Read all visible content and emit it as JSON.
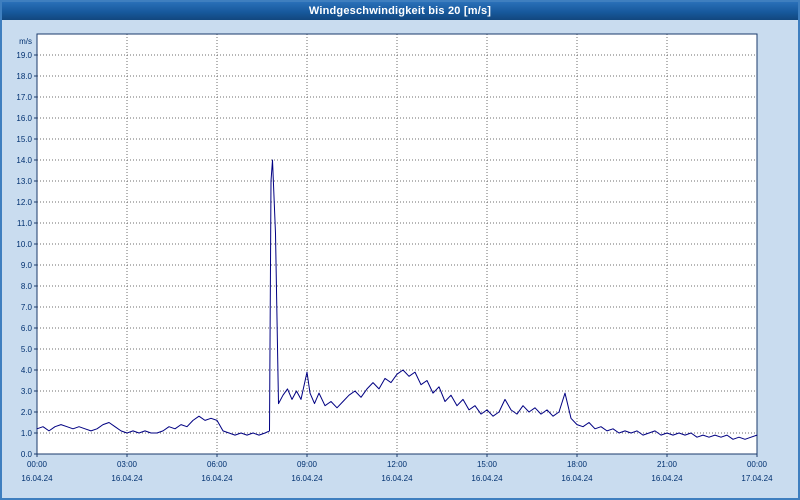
{
  "window": {
    "title": "Windgeschwindigkeit bis 20 [m/s]"
  },
  "colors": {
    "titlebar_bg": "#17599d",
    "titlebar_text": "#ffffff",
    "page_bg": "#c9dcef",
    "plot_bg": "#ffffff",
    "plot_border": "#1a3a6b",
    "grid": "#6e6e6e",
    "axis_text": "#003070",
    "series_line": "#000082",
    "outer_border": "#3f7fbf"
  },
  "chart_data": {
    "type": "line",
    "title": "Windgeschwindigkeit bis 20 [m/s]",
    "ylabel": "m/s",
    "ylim": [
      0,
      20
    ],
    "ytick_step": 1.0,
    "ytick_labels": [
      "0.0",
      "1.0",
      "2.0",
      "3.0",
      "4.0",
      "5.0",
      "6.0",
      "7.0",
      "8.0",
      "9.0",
      "10.0",
      "11.0",
      "12.0",
      "13.0",
      "14.0",
      "15.0",
      "16.0",
      "17.0",
      "18.0",
      "19.0"
    ],
    "x_hours_range": [
      0,
      24
    ],
    "xtick_interval_hours": 3,
    "grid": "dotted",
    "legend": "none",
    "xticks": [
      {
        "time": "00:00",
        "date": "16.04.24"
      },
      {
        "time": "03:00",
        "date": "16.04.24"
      },
      {
        "time": "06:00",
        "date": "16.04.24"
      },
      {
        "time": "09:00",
        "date": "16.04.24"
      },
      {
        "time": "12:00",
        "date": "16.04.24"
      },
      {
        "time": "15:00",
        "date": "16.04.24"
      },
      {
        "time": "18:00",
        "date": "16.04.24"
      },
      {
        "time": "21:00",
        "date": "16.04.24"
      },
      {
        "time": "00:00",
        "date": "17.04.24"
      }
    ],
    "series": [
      {
        "name": "Windgeschwindigkeit",
        "color": "#000082",
        "points": [
          [
            0,
            1.2
          ],
          [
            0.2,
            1.3
          ],
          [
            0.4,
            1.1
          ],
          [
            0.6,
            1.3
          ],
          [
            0.8,
            1.4
          ],
          [
            1,
            1.3
          ],
          [
            1.2,
            1.2
          ],
          [
            1.4,
            1.3
          ],
          [
            1.6,
            1.2
          ],
          [
            1.8,
            1.1
          ],
          [
            2,
            1.2
          ],
          [
            2.2,
            1.4
          ],
          [
            2.4,
            1.5
          ],
          [
            2.6,
            1.3
          ],
          [
            2.8,
            1.1
          ],
          [
            3,
            1.0
          ],
          [
            3.2,
            1.1
          ],
          [
            3.4,
            1.0
          ],
          [
            3.6,
            1.1
          ],
          [
            3.8,
            1.0
          ],
          [
            4,
            1.0
          ],
          [
            4.2,
            1.1
          ],
          [
            4.4,
            1.3
          ],
          [
            4.6,
            1.2
          ],
          [
            4.8,
            1.4
          ],
          [
            5,
            1.3
          ],
          [
            5.2,
            1.6
          ],
          [
            5.4,
            1.8
          ],
          [
            5.6,
            1.6
          ],
          [
            5.8,
            1.7
          ],
          [
            6,
            1.6
          ],
          [
            6.2,
            1.1
          ],
          [
            6.4,
            1.0
          ],
          [
            6.6,
            0.9
          ],
          [
            6.8,
            1.0
          ],
          [
            7,
            0.9
          ],
          [
            7.2,
            1.0
          ],
          [
            7.4,
            0.9
          ],
          [
            7.6,
            1.0
          ],
          [
            7.75,
            1.1
          ],
          [
            7.8,
            13.0
          ],
          [
            7.85,
            14.0
          ],
          [
            7.95,
            10.5
          ],
          [
            8.05,
            2.4
          ],
          [
            8.2,
            2.8
          ],
          [
            8.35,
            3.1
          ],
          [
            8.5,
            2.6
          ],
          [
            8.65,
            3.0
          ],
          [
            8.8,
            2.6
          ],
          [
            9,
            3.9
          ],
          [
            9.1,
            2.9
          ],
          [
            9.25,
            2.4
          ],
          [
            9.4,
            2.9
          ],
          [
            9.6,
            2.3
          ],
          [
            9.8,
            2.5
          ],
          [
            10,
            2.2
          ],
          [
            10.2,
            2.5
          ],
          [
            10.4,
            2.8
          ],
          [
            10.6,
            3.0
          ],
          [
            10.8,
            2.7
          ],
          [
            11,
            3.1
          ],
          [
            11.2,
            3.4
          ],
          [
            11.4,
            3.1
          ],
          [
            11.6,
            3.6
          ],
          [
            11.8,
            3.4
          ],
          [
            12,
            3.8
          ],
          [
            12.2,
            4.0
          ],
          [
            12.4,
            3.7
          ],
          [
            12.6,
            3.9
          ],
          [
            12.8,
            3.3
          ],
          [
            13,
            3.5
          ],
          [
            13.2,
            2.9
          ],
          [
            13.4,
            3.2
          ],
          [
            13.6,
            2.5
          ],
          [
            13.8,
            2.8
          ],
          [
            14,
            2.3
          ],
          [
            14.2,
            2.6
          ],
          [
            14.4,
            2.1
          ],
          [
            14.6,
            2.3
          ],
          [
            14.8,
            1.9
          ],
          [
            15,
            2.1
          ],
          [
            15.2,
            1.8
          ],
          [
            15.4,
            2.0
          ],
          [
            15.6,
            2.6
          ],
          [
            15.8,
            2.1
          ],
          [
            16,
            1.9
          ],
          [
            16.2,
            2.3
          ],
          [
            16.4,
            2.0
          ],
          [
            16.6,
            2.2
          ],
          [
            16.8,
            1.9
          ],
          [
            17,
            2.1
          ],
          [
            17.2,
            1.8
          ],
          [
            17.4,
            2.0
          ],
          [
            17.6,
            2.9
          ],
          [
            17.8,
            1.7
          ],
          [
            18,
            1.4
          ],
          [
            18.2,
            1.3
          ],
          [
            18.4,
            1.5
          ],
          [
            18.6,
            1.2
          ],
          [
            18.8,
            1.3
          ],
          [
            19,
            1.1
          ],
          [
            19.2,
            1.2
          ],
          [
            19.4,
            1.0
          ],
          [
            19.6,
            1.1
          ],
          [
            19.8,
            1.0
          ],
          [
            20,
            1.1
          ],
          [
            20.2,
            0.9
          ],
          [
            20.4,
            1.0
          ],
          [
            20.6,
            1.1
          ],
          [
            20.8,
            0.9
          ],
          [
            21,
            1.0
          ],
          [
            21.2,
            0.9
          ],
          [
            21.4,
            1.0
          ],
          [
            21.6,
            0.9
          ],
          [
            21.8,
            1.0
          ],
          [
            22,
            0.8
          ],
          [
            22.2,
            0.9
          ],
          [
            22.4,
            0.8
          ],
          [
            22.6,
            0.9
          ],
          [
            22.8,
            0.8
          ],
          [
            23,
            0.9
          ],
          [
            23.2,
            0.7
          ],
          [
            23.4,
            0.8
          ],
          [
            23.6,
            0.7
          ],
          [
            23.8,
            0.8
          ],
          [
            24,
            0.9
          ]
        ]
      }
    ]
  }
}
